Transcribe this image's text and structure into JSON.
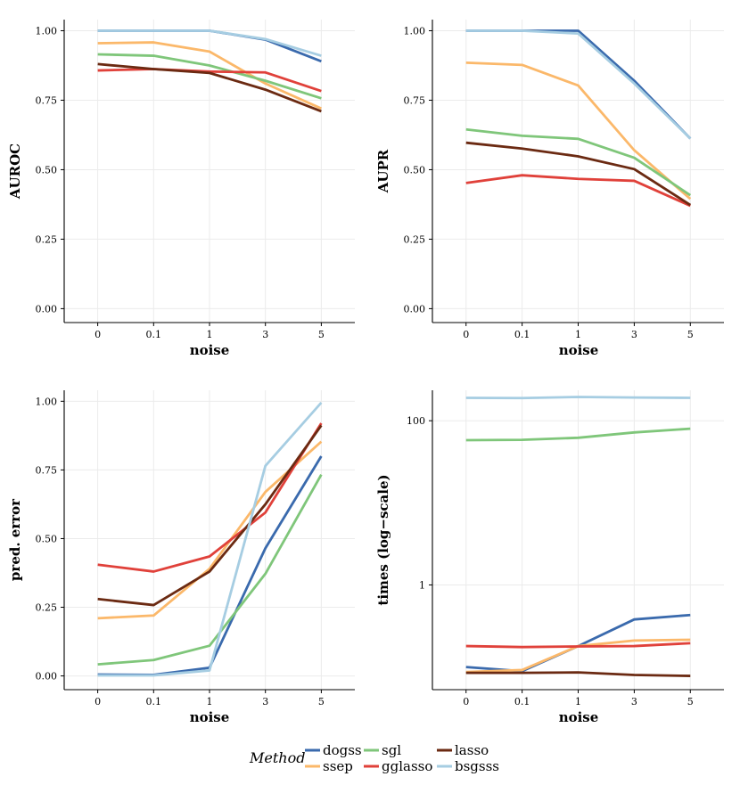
{
  "chart_data": [
    {
      "id": "auroc",
      "type": "line",
      "scale": "linear",
      "title": "",
      "xlabel": "noise",
      "ylabel": "AUROC",
      "categories": [
        "0",
        "0.1",
        "1",
        "3",
        "5"
      ],
      "ylim": [
        -0.05,
        1.04
      ],
      "yticks": [
        0.0,
        0.25,
        0.5,
        0.75,
        1.0
      ],
      "ytick_labels": [
        "0.00",
        "0.25",
        "0.50",
        "0.75",
        "1.00"
      ],
      "series": [
        {
          "name": "dogss",
          "values": [
            1.0,
            1.0,
            1.0,
            0.968,
            0.89
          ]
        },
        {
          "name": "ssep",
          "values": [
            0.955,
            0.958,
            0.925,
            0.81,
            0.72
          ]
        },
        {
          "name": "sgl",
          "values": [
            0.915,
            0.91,
            0.875,
            0.82,
            0.757
          ]
        },
        {
          "name": "gglasso",
          "values": [
            0.857,
            0.862,
            0.853,
            0.85,
            0.783
          ]
        },
        {
          "name": "lasso",
          "values": [
            0.88,
            0.862,
            0.848,
            0.788,
            0.71
          ]
        },
        {
          "name": "bsgsss",
          "values": [
            1.0,
            1.0,
            1.0,
            0.97,
            0.91
          ]
        }
      ]
    },
    {
      "id": "aupr",
      "type": "line",
      "scale": "linear",
      "title": "",
      "xlabel": "noise",
      "ylabel": "AUPR",
      "categories": [
        "0",
        "0.1",
        "1",
        "3",
        "5"
      ],
      "ylim": [
        -0.05,
        1.04
      ],
      "yticks": [
        0.0,
        0.25,
        0.5,
        0.75,
        1.0
      ],
      "ytick_labels": [
        "0.00",
        "0.25",
        "0.50",
        "0.75",
        "1.00"
      ],
      "series": [
        {
          "name": "dogss",
          "values": [
            1.0,
            1.0,
            1.0,
            0.82,
            0.612
          ]
        },
        {
          "name": "ssep",
          "values": [
            0.885,
            0.877,
            0.803,
            0.57,
            0.395
          ]
        },
        {
          "name": "sgl",
          "values": [
            0.645,
            0.622,
            0.611,
            0.543,
            0.408
          ]
        },
        {
          "name": "gglasso",
          "values": [
            0.452,
            0.48,
            0.467,
            0.46,
            0.37
          ]
        },
        {
          "name": "lasso",
          "values": [
            0.597,
            0.576,
            0.548,
            0.502,
            0.373
          ]
        },
        {
          "name": "bsgsss",
          "values": [
            1.0,
            1.0,
            0.99,
            0.81,
            0.612
          ]
        }
      ]
    },
    {
      "id": "pred-error",
      "type": "line",
      "scale": "linear",
      "title": "",
      "xlabel": "noise",
      "ylabel": "pred. error",
      "categories": [
        "0",
        "0.1",
        "1",
        "3",
        "5"
      ],
      "ylim": [
        -0.05,
        1.04
      ],
      "yticks": [
        0.0,
        0.25,
        0.5,
        0.75,
        1.0
      ],
      "ytick_labels": [
        "0.00",
        "0.25",
        "0.50",
        "0.75",
        "1.00"
      ],
      "series": [
        {
          "name": "dogss",
          "values": [
            0.005,
            0.004,
            0.03,
            0.465,
            0.8
          ]
        },
        {
          "name": "ssep",
          "values": [
            0.21,
            0.22,
            0.39,
            0.67,
            0.853
          ]
        },
        {
          "name": "sgl",
          "values": [
            0.042,
            0.058,
            0.11,
            0.372,
            0.733
          ]
        },
        {
          "name": "gglasso",
          "values": [
            0.405,
            0.38,
            0.435,
            0.595,
            0.92
          ]
        },
        {
          "name": "lasso",
          "values": [
            0.28,
            0.258,
            0.38,
            0.625,
            0.912
          ]
        },
        {
          "name": "bsgsss",
          "values": [
            0.002,
            0.002,
            0.02,
            0.765,
            0.995
          ]
        }
      ]
    },
    {
      "id": "times",
      "type": "line",
      "scale": "log10",
      "title": "",
      "xlabel": "noise",
      "ylabel": "times (log−scale)",
      "categories": [
        "0",
        "0.1",
        "1",
        "3",
        "5"
      ],
      "ylim": [
        0.053,
        235
      ],
      "yticks": [
        1,
        100
      ],
      "ytick_labels": [
        "1",
        "100"
      ],
      "series": [
        {
          "name": "dogss",
          "values": [
            0.1,
            0.089,
            0.18,
            0.38,
            0.43
          ]
        },
        {
          "name": "ssep",
          "values": [
            0.087,
            0.092,
            0.18,
            0.21,
            0.215
          ]
        },
        {
          "name": "sgl",
          "values": [
            58,
            58.5,
            62,
            72,
            80
          ]
        },
        {
          "name": "gglasso",
          "values": [
            0.18,
            0.175,
            0.178,
            0.18,
            0.195
          ]
        },
        {
          "name": "lasso",
          "values": [
            0.085,
            0.085,
            0.086,
            0.08,
            0.078
          ]
        },
        {
          "name": "bsgsss",
          "values": [
            190,
            189,
            195,
            192,
            190
          ]
        }
      ]
    }
  ],
  "legend": {
    "title": "Method",
    "entries": [
      {
        "name": "dogss",
        "label": "dogss",
        "color": "#3a6aad"
      },
      {
        "name": "sgl",
        "label": "sgl",
        "color": "#7fc67a"
      },
      {
        "name": "lasso",
        "label": "lasso",
        "color": "#6b2a12"
      },
      {
        "name": "ssep",
        "label": "ssep",
        "color": "#fbb86a"
      },
      {
        "name": "gglasso",
        "label": "gglasso",
        "color": "#e0413a"
      },
      {
        "name": "bsgsss",
        "label": "bsgsss",
        "color": "#a6cde2"
      }
    ]
  }
}
